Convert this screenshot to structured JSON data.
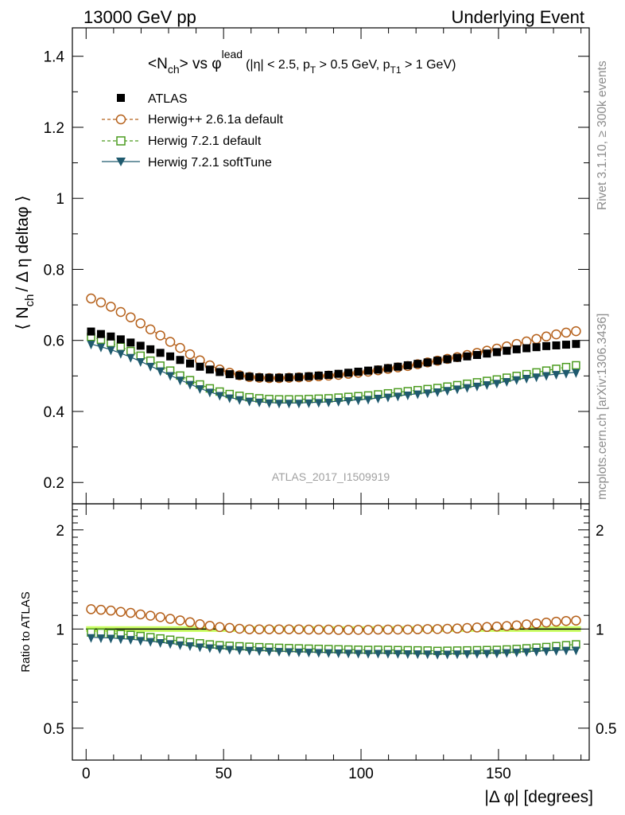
{
  "header": {
    "left": "13000 GeV pp",
    "right": "Underlying Event"
  },
  "side_labels": {
    "top": "Rivet 3.1.10, ≥ 300k events",
    "bottom": "mcplots.cern.ch [arXiv:1306.3436]"
  },
  "chart_data": [
    {
      "type": "scatter",
      "title_main": "<N",
      "title_sub1": "ch",
      "title_mid": "> vs φ",
      "title_sup": "lead",
      "title_cut_a": "(|η| < 2.5, p",
      "title_cut_sub_a": "T",
      "title_cut_b": " > 0.5 GeV, p",
      "title_cut_sub_b": "T1",
      "title_cut_c": " > 1 GeV)",
      "ylabel_a": "⟨ N",
      "ylabel_sub": "ch",
      "ylabel_b": "/ Δ η deltaφ ⟩",
      "analysis_label": "ATLAS_2017_I1509919",
      "xlim": [
        -5,
        183
      ],
      "ylim": [
        0.14,
        1.48
      ],
      "yticks": [
        0.2,
        0.4,
        0.6,
        0.8,
        1.0,
        1.2,
        1.4
      ],
      "ytick_labels": [
        "0.2",
        "0.4",
        "0.6",
        "0.8",
        "1",
        "1.2",
        "1.4"
      ],
      "x": [
        1.8,
        5.4,
        9.0,
        12.6,
        16.2,
        19.8,
        23.4,
        27.0,
        30.6,
        34.2,
        37.8,
        41.4,
        45.0,
        48.6,
        52.2,
        55.8,
        59.4,
        63.0,
        66.6,
        70.2,
        73.8,
        77.4,
        81.0,
        84.6,
        88.2,
        91.8,
        95.4,
        99.0,
        102.6,
        106.2,
        109.8,
        113.4,
        117.0,
        120.6,
        124.2,
        127.8,
        131.4,
        135.0,
        138.6,
        142.2,
        145.8,
        149.4,
        153.0,
        156.6,
        160.2,
        163.8,
        167.4,
        171.0,
        174.6,
        178.2
      ],
      "series": [
        {
          "name": "ATLAS",
          "marker": "square-filled",
          "color": "#000000",
          "line": "none",
          "y": [
            0.625,
            0.618,
            0.611,
            0.603,
            0.594,
            0.585,
            0.575,
            0.565,
            0.555,
            0.545,
            0.535,
            0.526,
            0.518,
            0.511,
            0.505,
            0.501,
            0.498,
            0.496,
            0.495,
            0.495,
            0.496,
            0.497,
            0.499,
            0.501,
            0.503,
            0.506,
            0.509,
            0.512,
            0.515,
            0.518,
            0.522,
            0.526,
            0.53,
            0.534,
            0.538,
            0.543,
            0.547,
            0.551,
            0.555,
            0.559,
            0.563,
            0.567,
            0.571,
            0.575,
            0.578,
            0.581,
            0.584,
            0.586,
            0.588,
            0.59
          ]
        },
        {
          "name": "Herwig++ 2.6.1a default",
          "marker": "circle-open",
          "color": "#b5601a",
          "line": "dashed",
          "y": [
            0.718,
            0.707,
            0.695,
            0.68,
            0.665,
            0.648,
            0.631,
            0.614,
            0.596,
            0.579,
            0.561,
            0.544,
            0.53,
            0.518,
            0.509,
            0.502,
            0.497,
            0.495,
            0.494,
            0.494,
            0.495,
            0.496,
            0.497,
            0.499,
            0.501,
            0.503,
            0.506,
            0.509,
            0.512,
            0.516,
            0.52,
            0.524,
            0.528,
            0.533,
            0.538,
            0.543,
            0.548,
            0.553,
            0.559,
            0.565,
            0.571,
            0.577,
            0.583,
            0.59,
            0.597,
            0.604,
            0.611,
            0.617,
            0.622,
            0.626
          ]
        },
        {
          "name": "Herwig 7.2.1 default",
          "marker": "square-open",
          "color": "#4a9b1e",
          "line": "dashed",
          "y": [
            0.61,
            0.602,
            0.593,
            0.582,
            0.57,
            0.557,
            0.543,
            0.529,
            0.515,
            0.501,
            0.488,
            0.476,
            0.465,
            0.456,
            0.449,
            0.444,
            0.44,
            0.437,
            0.435,
            0.434,
            0.434,
            0.434,
            0.435,
            0.436,
            0.437,
            0.439,
            0.441,
            0.443,
            0.445,
            0.448,
            0.451,
            0.454,
            0.457,
            0.46,
            0.463,
            0.466,
            0.47,
            0.474,
            0.478,
            0.482,
            0.486,
            0.49,
            0.495,
            0.5,
            0.505,
            0.51,
            0.515,
            0.52,
            0.525,
            0.53
          ]
        },
        {
          "name": "Herwig 7.2.1 softTune",
          "marker": "triangle-down-filled",
          "color": "#1f5a6e",
          "line": "solid",
          "y": [
            0.59,
            0.582,
            0.574,
            0.564,
            0.553,
            0.541,
            0.528,
            0.515,
            0.502,
            0.489,
            0.477,
            0.465,
            0.455,
            0.446,
            0.439,
            0.434,
            0.43,
            0.427,
            0.425,
            0.424,
            0.424,
            0.424,
            0.425,
            0.426,
            0.427,
            0.429,
            0.431,
            0.433,
            0.435,
            0.438,
            0.441,
            0.444,
            0.447,
            0.45,
            0.453,
            0.456,
            0.46,
            0.464,
            0.468,
            0.472,
            0.476,
            0.48,
            0.485,
            0.49,
            0.494,
            0.498,
            0.502,
            0.505,
            0.508,
            0.51
          ]
        }
      ]
    },
    {
      "type": "scatter",
      "ylabel": "Ratio to ATLAS",
      "xlabel": "|Δ φ| [degrees]",
      "ylog": true,
      "ylim": [
        0.4,
        2.4
      ],
      "yticks": [
        0.5,
        1,
        2
      ],
      "ytick_labels": [
        "0.5",
        "1",
        "2"
      ],
      "xticks": [
        0,
        50,
        100,
        150
      ],
      "xtick_labels": [
        "0",
        "50",
        "100",
        "150"
      ],
      "reference_band_color": "#ccff66"
    }
  ]
}
